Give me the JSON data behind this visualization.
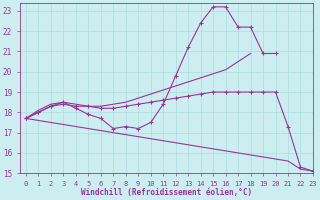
{
  "title": "",
  "xlabel": "Windchill (Refroidissement éolien,°C)",
  "ylabel": "",
  "xlim": [
    -0.5,
    23
  ],
  "ylim": [
    15,
    23.4
  ],
  "yticks": [
    15,
    16,
    17,
    18,
    19,
    20,
    21,
    22,
    23
  ],
  "xticks": [
    0,
    1,
    2,
    3,
    4,
    5,
    6,
    7,
    8,
    9,
    10,
    11,
    12,
    13,
    14,
    15,
    16,
    17,
    18,
    19,
    20,
    21,
    22,
    23
  ],
  "bg_color": "#cceef0",
  "line_color": "#993399",
  "grid_color": "#aadddd",
  "lines": [
    {
      "x": [
        0,
        1,
        2,
        3,
        4,
        5,
        6,
        7,
        8,
        9,
        10,
        11,
        12,
        13,
        14,
        15,
        16,
        17,
        18,
        19,
        20,
        21,
        22,
        23
      ],
      "y": [
        17.7,
        18.0,
        18.3,
        18.5,
        18.2,
        17.9,
        17.7,
        17.2,
        17.3,
        17.2,
        17.5,
        18.4,
        19.8,
        21.2,
        22.4,
        23.2,
        23.2,
        22.2,
        22.2,
        20.9,
        20.9,
        null,
        null,
        null
      ],
      "has_markers": true
    },
    {
      "x": [
        0,
        1,
        2,
        3,
        4,
        5,
        6,
        7,
        8,
        9,
        10,
        11,
        12,
        13,
        14,
        15,
        16,
        17,
        18,
        19,
        20,
        21,
        22,
        23
      ],
      "y": [
        17.7,
        18.1,
        18.4,
        18.5,
        18.4,
        18.3,
        18.3,
        18.4,
        18.5,
        18.7,
        18.9,
        19.1,
        19.3,
        19.5,
        19.7,
        19.9,
        20.1,
        20.5,
        20.9,
        null,
        null,
        null,
        null,
        null
      ],
      "has_markers": false
    },
    {
      "x": [
        0,
        1,
        2,
        3,
        4,
        5,
        6,
        7,
        8,
        9,
        10,
        11,
        12,
        13,
        14,
        15,
        16,
        17,
        18,
        19,
        20,
        21,
        22,
        23
      ],
      "y": [
        17.7,
        18.0,
        18.3,
        18.4,
        18.3,
        18.3,
        18.2,
        18.2,
        18.3,
        18.4,
        18.5,
        18.6,
        18.7,
        18.8,
        18.9,
        19.0,
        19.0,
        19.0,
        19.0,
        19.0,
        19.0,
        17.3,
        15.3,
        15.1
      ],
      "has_markers": true
    },
    {
      "x": [
        0,
        1,
        2,
        3,
        4,
        5,
        6,
        7,
        8,
        9,
        10,
        11,
        12,
        13,
        14,
        15,
        16,
        17,
        18,
        19,
        20,
        21,
        22,
        23
      ],
      "y": [
        17.7,
        17.6,
        17.5,
        17.4,
        17.3,
        17.2,
        17.1,
        17.0,
        16.9,
        16.8,
        16.7,
        16.6,
        16.5,
        16.4,
        16.3,
        16.2,
        16.1,
        16.0,
        15.9,
        15.8,
        15.7,
        15.6,
        15.2,
        15.1
      ],
      "has_markers": false
    }
  ]
}
